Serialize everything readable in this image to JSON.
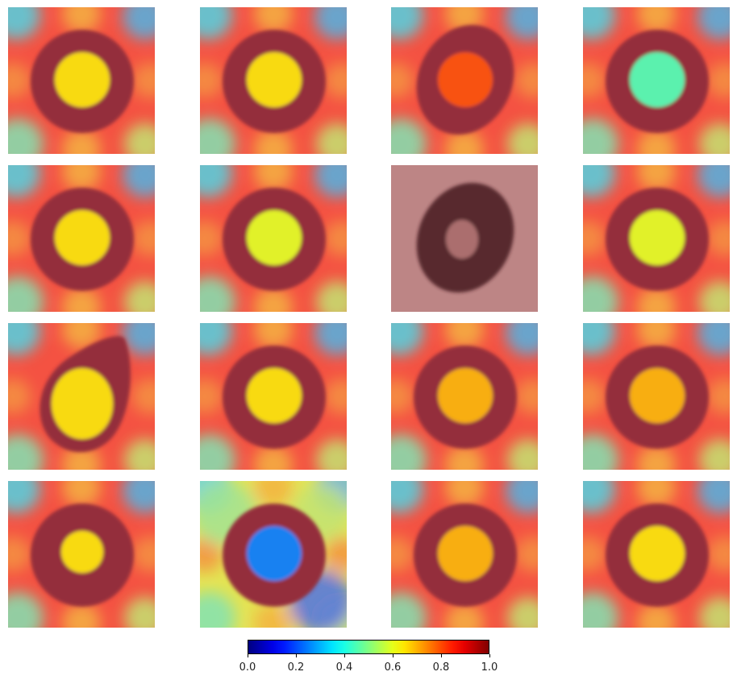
{
  "figure": {
    "description_type": "gradcam_overlay_grid",
    "rows": 4,
    "cols": 4
  },
  "colorbar": {
    "colormap": "jet",
    "min": 0.0,
    "max": 1.0,
    "ticks": [
      "0.0",
      "0.2",
      "0.4",
      "0.6",
      "0.8",
      "1.0"
    ],
    "colors": [
      "#00007f",
      "#0000ff",
      "#00ffff",
      "#7fff7f",
      "#ffff00",
      "#ff7f00",
      "#ff0000",
      "#7f0000"
    ]
  },
  "chart_data": {
    "type": "heatmap",
    "title": "",
    "xlabel": "",
    "ylabel": "",
    "value_range": [
      0.0,
      1.0
    ],
    "colorbar_ticks": [
      0.0,
      0.2,
      0.4,
      0.6,
      0.8,
      1.0
    ],
    "panels": [
      {
        "row": 0,
        "col": 0,
        "cell": "round",
        "center_activation": 0.65,
        "background_activation": 0.85
      },
      {
        "row": 0,
        "col": 1,
        "cell": "round",
        "center_activation": 0.65,
        "background_activation": 0.85
      },
      {
        "row": 0,
        "col": 2,
        "cell": "oval ring",
        "center_activation": 0.8,
        "background_activation": 0.85
      },
      {
        "row": 0,
        "col": 3,
        "cell": "spiculated",
        "center_activation": 0.45,
        "background_activation": 0.85
      },
      {
        "row": 1,
        "col": 0,
        "cell": "round",
        "center_activation": 0.65,
        "background_activation": 0.85
      },
      {
        "row": 1,
        "col": 1,
        "cell": "round",
        "center_activation": 0.6,
        "background_activation": 0.85
      },
      {
        "row": 1,
        "col": 2,
        "cell": "oval ring",
        "center_activation": 1.0,
        "background_activation": 1.0
      },
      {
        "row": 1,
        "col": 3,
        "cell": "round",
        "center_activation": 0.6,
        "background_activation": 0.85
      },
      {
        "row": 2,
        "col": 0,
        "cell": "teardrop",
        "center_activation": 0.65,
        "background_activation": 0.85
      },
      {
        "row": 2,
        "col": 1,
        "cell": "round",
        "center_activation": 0.65,
        "background_activation": 0.85
      },
      {
        "row": 2,
        "col": 2,
        "cell": "round",
        "center_activation": 0.7,
        "background_activation": 0.85
      },
      {
        "row": 2,
        "col": 3,
        "cell": "round",
        "center_activation": 0.7,
        "background_activation": 0.85
      },
      {
        "row": 3,
        "col": 0,
        "cell": "small ring",
        "center_activation": 0.65,
        "background_activation": 0.85
      },
      {
        "row": 3,
        "col": 1,
        "cell": "round",
        "center_activation": 0.25,
        "background_activation": 0.6
      },
      {
        "row": 3,
        "col": 2,
        "cell": "round",
        "center_activation": 0.7,
        "background_activation": 0.85
      },
      {
        "row": 3,
        "col": 3,
        "cell": "spiculated",
        "center_activation": 0.65,
        "background_activation": 0.85
      }
    ]
  }
}
